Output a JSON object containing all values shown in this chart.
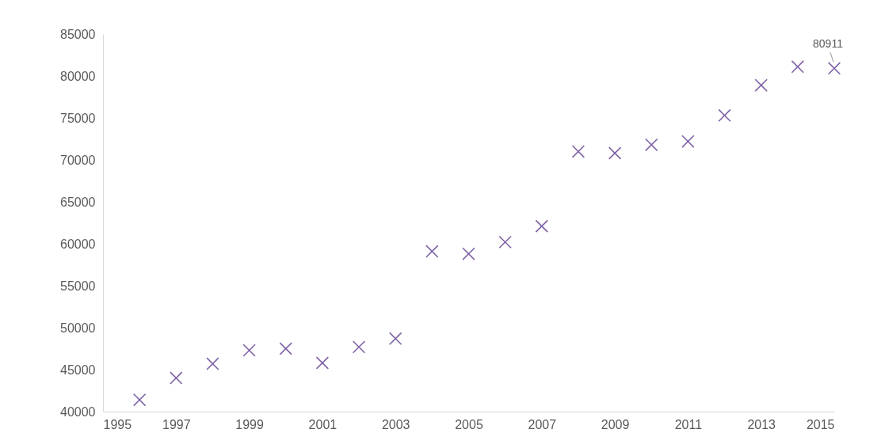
{
  "chart_data": {
    "type": "scatter",
    "x": [
      1996,
      1997,
      1998,
      1999,
      2000,
      2001,
      2002,
      2003,
      2004,
      2005,
      2006,
      2007,
      2008,
      2009,
      2010,
      2011,
      2012,
      2013,
      2014,
      2015
    ],
    "series": [
      {
        "color": "#7e62a6",
        "values": [
          41400,
          44000,
          45700,
          47300,
          47500,
          45800,
          47700,
          48700,
          59100,
          58800,
          60200,
          62100,
          71000,
          70800,
          71800,
          72200,
          75300,
          78900,
          81100,
          80911
        ]
      }
    ],
    "xlim": [
      1995,
      2015
    ],
    "xticks": [
      1995,
      1997,
      1999,
      2001,
      2003,
      2005,
      2007,
      2009,
      2011,
      2013,
      2015
    ],
    "ylim": [
      40000,
      85000
    ],
    "yticks": [
      40000,
      45000,
      50000,
      55000,
      60000,
      65000,
      70000,
      75000,
      80000,
      85000
    ],
    "annotations": [
      {
        "text": "80911",
        "x": 2015,
        "y": 80911
      }
    ],
    "marker": "cross",
    "grid": false
  }
}
